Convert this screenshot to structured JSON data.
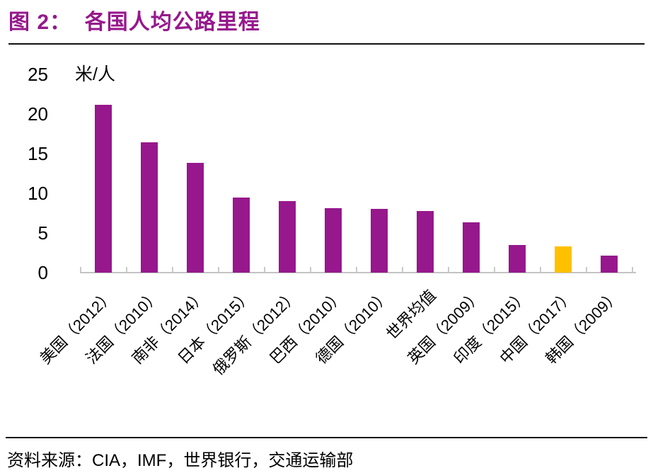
{
  "figure": {
    "title": "图 2：  各国人均公路里程",
    "source": "资料来源：CIA，IMF，世界银行，交通运输部"
  },
  "colors": {
    "title_purple": "#96188C",
    "bar_purple": "#96188C",
    "highlight_orange": "#FFC000",
    "axis_gray": "#C6C6C6",
    "divider_black": "#111111",
    "text_black": "#000000"
  },
  "chart_data": {
    "type": "bar",
    "title": "各国人均公路里程",
    "ylabel": "米/人",
    "xlabel": "",
    "categories": [
      "美国（2012）",
      "法国（2010）",
      "南非（2014）",
      "日本（2015）",
      "俄罗斯（2012）",
      "巴西（2010）",
      "德国（2010）",
      "世界均值",
      "英国（2009）",
      "印度（2015）",
      "中国（2017）",
      "韩国（2009）"
    ],
    "values": [
      21.2,
      16.4,
      13.8,
      9.5,
      9.0,
      8.1,
      8.0,
      7.8,
      6.3,
      3.5,
      3.3,
      2.1
    ],
    "highlight_index": 10,
    "bar_color": "#96188C",
    "highlight_color": "#FFC000",
    "ylim": [
      0,
      25
    ],
    "yticks": [
      0,
      5,
      10,
      15,
      20,
      25
    ],
    "grid": false,
    "legend": "none",
    "x_tick_rotation_deg": 45
  }
}
